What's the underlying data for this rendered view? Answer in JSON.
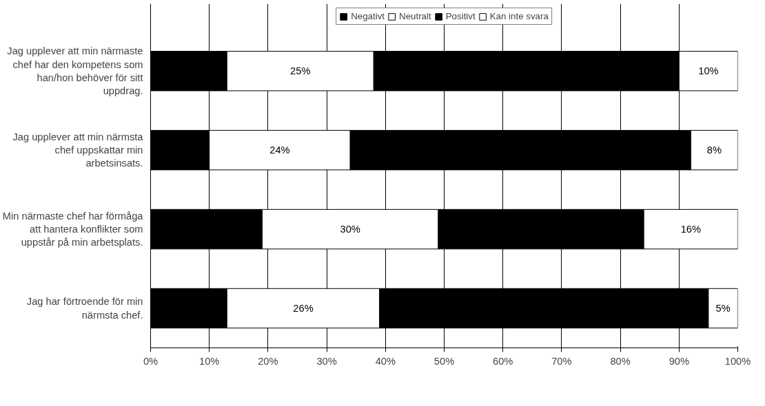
{
  "chart_data": {
    "type": "bar",
    "orientation": "horizontal",
    "stacked": true,
    "categories": [
      "Jag upplever att min närmaste chef har den kompetens som han/hon behöver för sitt uppdrag.",
      "Jag upplever att min närmsta chef uppskattar min arbetsinsats.",
      "Min närmaste chef har förmåga att hantera konflikter som uppstår på min arbetsplats.",
      "Jag har förtroende för min närmsta chef."
    ],
    "series": [
      {
        "name": "Negativt",
        "color": "#000000",
        "values": [
          13,
          10,
          19,
          13
        ]
      },
      {
        "name": "Neutralt",
        "color": "#ffffff",
        "values": [
          25,
          24,
          30,
          26
        ],
        "value_labels": [
          "25%",
          "24%",
          "30%",
          "26%"
        ]
      },
      {
        "name": "Positivt",
        "color": "#000000",
        "values": [
          52,
          58,
          35,
          56
        ]
      },
      {
        "name": "Kan inte svara",
        "color": "#ffffff",
        "values": [
          10,
          8,
          16,
          5
        ],
        "value_labels": [
          "10%",
          "8%",
          "16%",
          "5%"
        ]
      }
    ],
    "xlim": [
      0,
      100
    ],
    "xticks": [
      {
        "value": 0,
        "label": "0%"
      },
      {
        "value": 10,
        "label": "10%"
      },
      {
        "value": 20,
        "label": "20%"
      },
      {
        "value": 30,
        "label": "30%"
      },
      {
        "value": 40,
        "label": "40%"
      },
      {
        "value": 50,
        "label": "50%"
      },
      {
        "value": 60,
        "label": "60%"
      },
      {
        "value": 70,
        "label": "70%"
      },
      {
        "value": 80,
        "label": "80%"
      },
      {
        "value": 90,
        "label": "90%"
      },
      {
        "value": 100,
        "label": "100%"
      }
    ],
    "grid": "x",
    "legend": "top"
  }
}
